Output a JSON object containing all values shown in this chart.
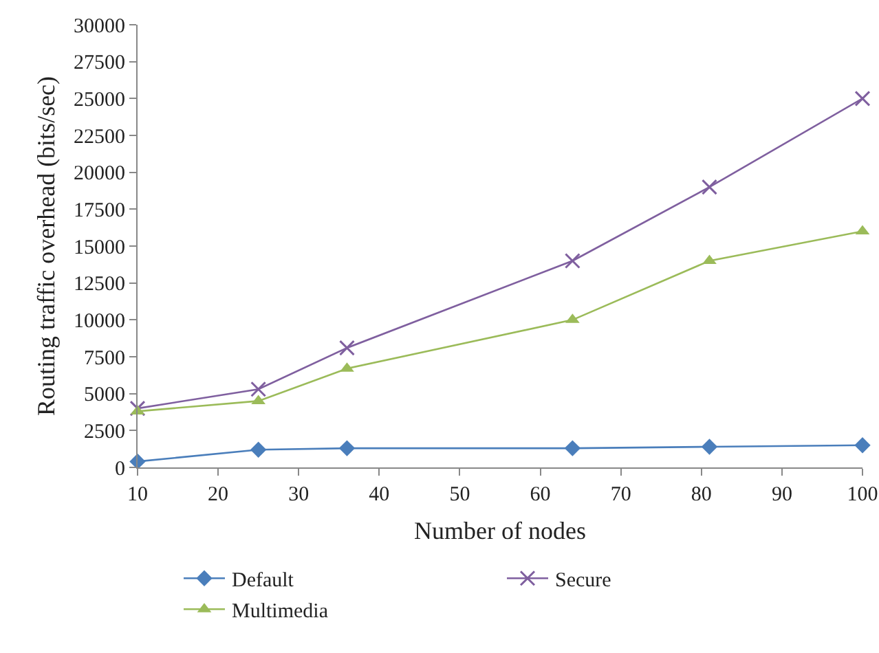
{
  "chart_data": {
    "type": "line",
    "xlabel": "Number of nodes",
    "ylabel": "Routing traffic overhead (bits/sec)",
    "x": [
      10,
      25,
      36,
      64,
      81,
      100
    ],
    "series": [
      {
        "name": "Default",
        "color": "#4a7ebb",
        "marker": "diamond",
        "values": [
          400,
          1200,
          1300,
          1300,
          1400,
          1500
        ]
      },
      {
        "name": "Secure",
        "color": "#7f5f9f",
        "marker": "cross",
        "values": [
          4000,
          5300,
          8100,
          14000,
          19000,
          25000
        ]
      },
      {
        "name": "Multimedia",
        "color": "#9bbb59",
        "marker": "triangle",
        "values": [
          3800,
          4500,
          6700,
          10000,
          14000,
          16000
        ]
      }
    ],
    "xlim": [
      10,
      100
    ],
    "xticks": [
      10,
      20,
      30,
      40,
      50,
      60,
      70,
      80,
      90,
      100
    ],
    "ylim": [
      0,
      30000
    ],
    "yticks": [
      0,
      2500,
      5000,
      7500,
      10000,
      12500,
      15000,
      17500,
      20000,
      22500,
      25000,
      27500,
      30000
    ],
    "grid": false,
    "legend": "bottom",
    "line_style": "solid"
  }
}
